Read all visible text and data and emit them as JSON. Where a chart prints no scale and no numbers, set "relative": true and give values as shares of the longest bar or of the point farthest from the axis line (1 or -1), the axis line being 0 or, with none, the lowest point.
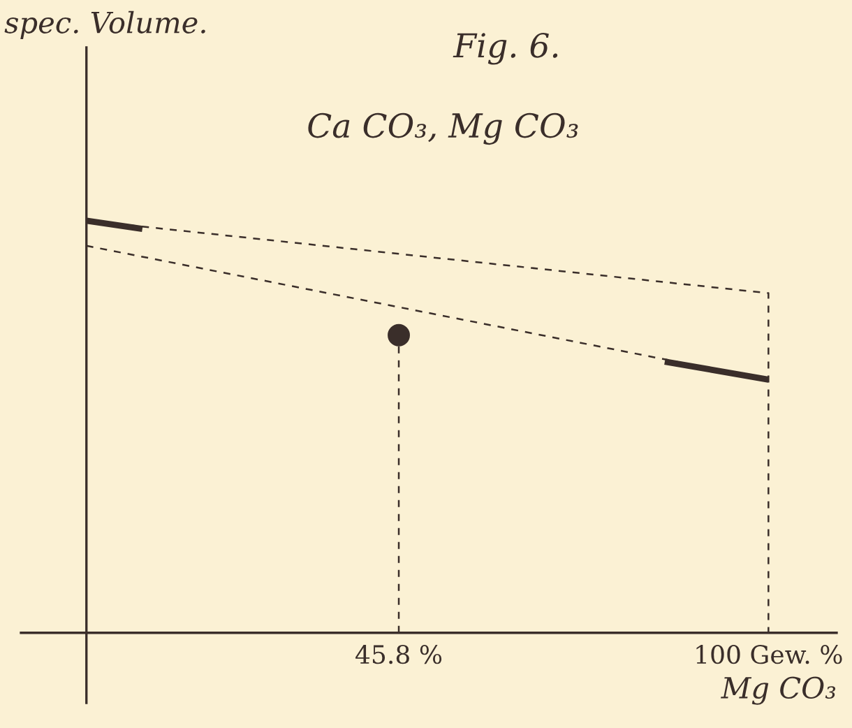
{
  "chart_data": {
    "type": "line",
    "title": "Fig. 6.",
    "subtitle": "Ca CO₃, Mg CO₃",
    "xlabel": "Mg CO₃",
    "annotations": [
      "spec. Volume."
    ],
    "relative": true,
    "xlim": [
      -9.6,
      110
    ],
    "xticks": [
      {
        "value": 45.8,
        "label": "45.8 %"
      },
      {
        "value": 100,
        "label": "100 Gew. %"
      }
    ],
    "series": [
      {
        "line_style": "dashed",
        "color": "#3a2e2a",
        "x": [
          0,
          100,
          100
        ],
        "values": [
          1,
          0.824,
          0
        ]
      },
      {
        "line_style": "dashed",
        "color": "#3a2e2a",
        "x": [
          0,
          100
        ],
        "values": [
          0.939,
          0.614
        ]
      },
      {
        "line_style": "solid",
        "color": "#3a2e2a",
        "x": [
          0,
          8.2
        ],
        "values": [
          1,
          0.98
        ]
      },
      {
        "line_style": "solid",
        "color": "#3a2e2a",
        "x": [
          84.8,
          100
        ],
        "values": [
          0.658,
          0.614
        ]
      },
      {
        "type": "lollipop",
        "line_style": "dashed",
        "marker": "circle",
        "color": "#3a2e2a",
        "x": [
          45.8
        ],
        "values": [
          0.722
        ]
      }
    ]
  }
}
